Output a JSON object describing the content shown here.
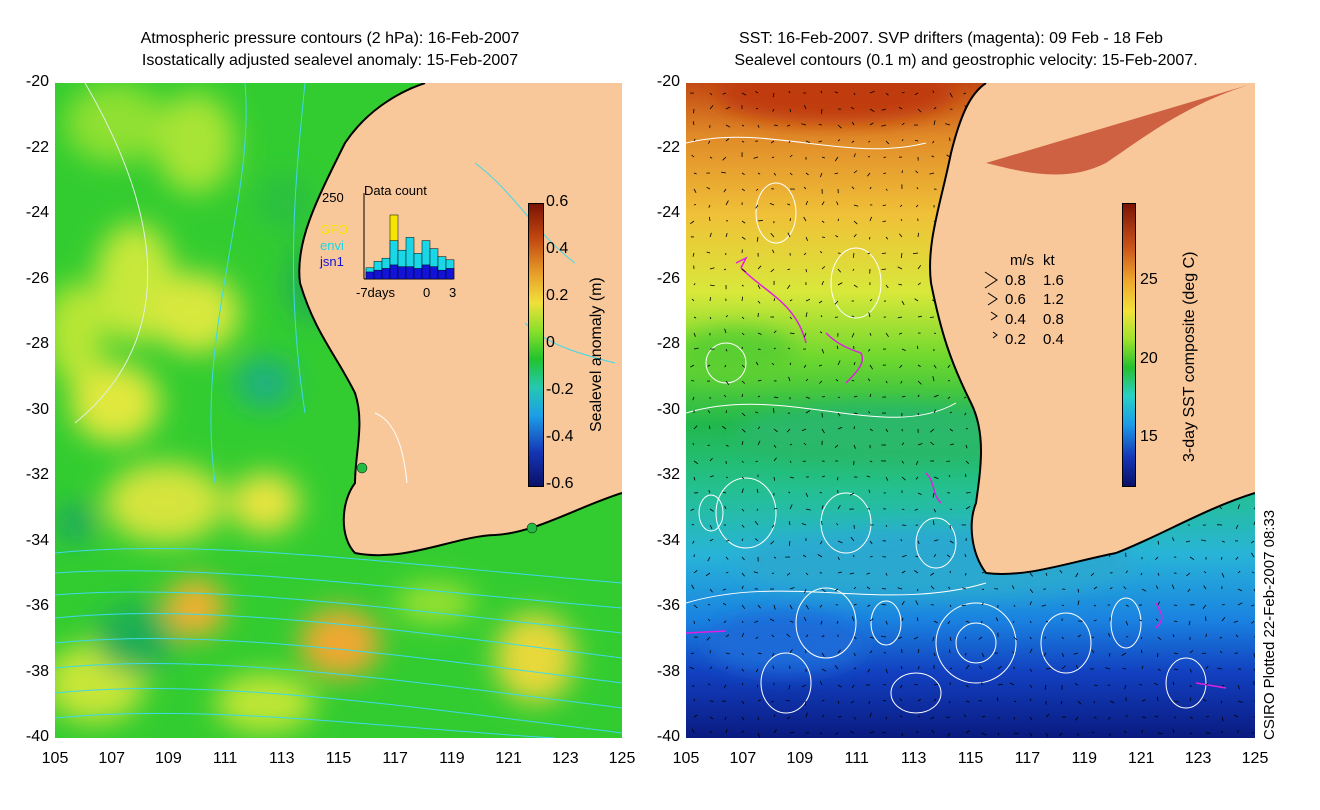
{
  "left_map": {
    "title_line1": "Atmospheric pressure contours (2 hPa): 16-Feb-2007",
    "title_line2": "Isostatically adjusted sealevel anomaly: 15-Feb-2007",
    "colorbar": {
      "label": "Sealevel anomaly (m)",
      "ticks": [
        "0.6",
        "0.4",
        "0.2",
        "0",
        "-0.2",
        "-0.4",
        "-0.6"
      ],
      "tick_values": [
        0.6,
        0.4,
        0.2,
        0,
        -0.2,
        -0.4,
        -0.6
      ],
      "range": [
        -0.6,
        0.6
      ]
    },
    "inset": {
      "title": "Data count",
      "ymax_label": "250",
      "xtick_left": "-7days",
      "xtick_mid": "0",
      "xtick_right": "3",
      "legend": [
        {
          "name": "GFO",
          "color": "#f5e500"
        },
        {
          "name": "envi",
          "color": "#19d7e6"
        },
        {
          "name": "jsn1",
          "color": "#1313d8"
        }
      ],
      "bars_envi": [
        35,
        55,
        65,
        120,
        90,
        130,
        80,
        120,
        95,
        70,
        60
      ],
      "bars_jsn1": [
        40,
        50,
        60,
        80,
        70,
        70,
        60,
        80,
        70,
        50,
        60
      ],
      "bars_gfo": [
        0,
        0,
        0,
        200,
        0,
        0,
        0,
        0,
        0,
        0,
        0
      ]
    },
    "tide_gauges": [
      {
        "lon": 115.95,
        "lat": -31.85,
        "color": "#22bb44"
      },
      {
        "lon": 121.9,
        "lat": -33.75,
        "color": "#22bb44"
      }
    ]
  },
  "right_map": {
    "title_line1": "SST: 16-Feb-2007. SVP drifters (magenta): 09 Feb - 18 Feb",
    "title_line2": "Sealevel contours (0.1 m) and geostrophic velocity: 15-Feb-2007.",
    "colorbar": {
      "label": "3-day SST composite (deg C)",
      "ticks": [
        "25",
        "20",
        "15"
      ],
      "tick_values": [
        25,
        20,
        15
      ],
      "range": [
        12,
        30
      ]
    },
    "velocity_legend": {
      "header_ms": "m/s",
      "header_kt": "kt",
      "rows": [
        {
          "ms": "0.8",
          "kt": "1.6"
        },
        {
          "ms": "0.6",
          "kt": "1.2"
        },
        {
          "ms": "0.4",
          "kt": "0.8"
        },
        {
          "ms": "0.2",
          "kt": "0.4"
        }
      ]
    }
  },
  "axes": {
    "lon_ticks": [
      "105",
      "107",
      "109",
      "111",
      "113",
      "115",
      "117",
      "119",
      "121",
      "123",
      "125"
    ],
    "lon_values": [
      105,
      107,
      109,
      111,
      113,
      115,
      117,
      119,
      121,
      123,
      125
    ],
    "lat_ticks": [
      "-20",
      "-22",
      "-24",
      "-26",
      "-28",
      "-30",
      "-32",
      "-34",
      "-36",
      "-38",
      "-40"
    ],
    "lat_values": [
      -20,
      -22,
      -24,
      -26,
      -28,
      -30,
      -32,
      -34,
      -36,
      -38,
      -40
    ]
  },
  "credit": "CSIRO Plotted 22-Feb-2007 08:33",
  "colors": {
    "land": "#f9c89a",
    "shelf": "#22c32d",
    "coast": "#000000",
    "pressure_contour": "#3fd8e8",
    "sealevel_contour": "#ffffff",
    "drifter": "#e020e0"
  }
}
